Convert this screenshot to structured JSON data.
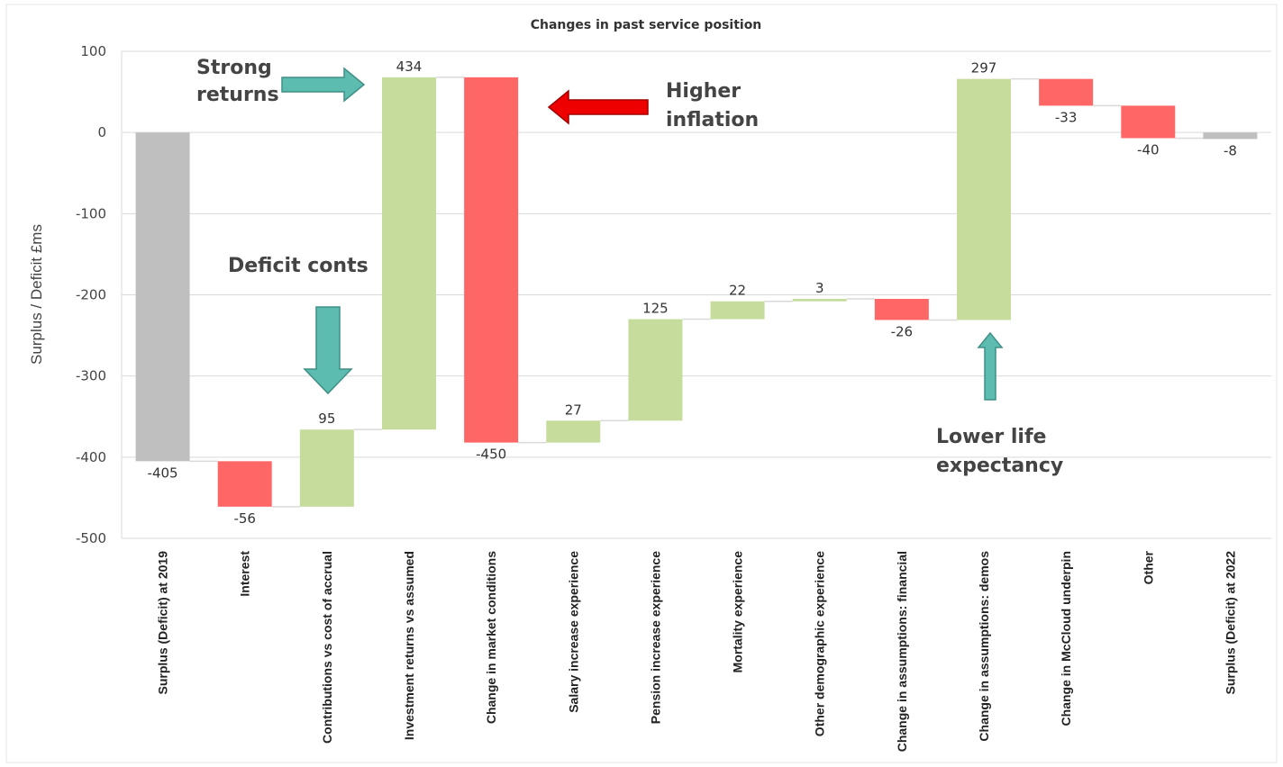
{
  "chart_data": {
    "type": "bar",
    "subtype": "waterfall",
    "title": "Changes in past service position",
    "ylabel": "Surplus / Deficit £ms",
    "xlabel": "",
    "ylim": [
      -500,
      100
    ],
    "yticks": [
      100,
      0,
      -100,
      -200,
      -300,
      -400,
      -500
    ],
    "grid": true,
    "categories": [
      "Surplus (Deficit) at 2019",
      "Interest",
      "Contributions vs cost of accrual",
      "Investment returns vs assumed",
      "Change in market conditions",
      "Salary increase experience",
      "Pension increase experience",
      "Mortality experience",
      "Other demographic experience",
      "Change in assumptions: financial",
      "Change in assumptions: demos",
      "Change in McCloud underpin",
      "Other",
      "Surplus (Deficit) at 2022"
    ],
    "values": [
      -405,
      -56,
      95,
      434,
      -450,
      27,
      125,
      22,
      3,
      -26,
      297,
      -33,
      -40,
      -8
    ],
    "value_labels": [
      "-405",
      "-56",
      "95",
      "434",
      "-450",
      "27",
      "125",
      "22",
      "3",
      "-26",
      "297",
      "-33",
      "-40",
      "-8"
    ],
    "kinds": [
      "total",
      "delta",
      "delta",
      "delta",
      "delta",
      "delta",
      "delta",
      "delta",
      "delta",
      "delta",
      "delta",
      "delta",
      "delta",
      "total"
    ],
    "colors": {
      "total": "#bfbfbf",
      "increase": "#c5dc9c",
      "decrease": "#ff6666",
      "connector": "#d9d9d9",
      "grid": "#d9d9d9",
      "arrow_teal": "#5cbcb0",
      "arrow_red": "#ee0000"
    },
    "annotations": [
      {
        "name": "strong-returns",
        "lines": [
          "Strong",
          "returns"
        ]
      },
      {
        "name": "higher-inflation",
        "lines": [
          "Higher",
          "inflation"
        ]
      },
      {
        "name": "deficit-conts",
        "lines": [
          "Deficit conts"
        ]
      },
      {
        "name": "lower-life-expectancy",
        "lines": [
          "Lower life",
          "expectancy"
        ]
      }
    ]
  }
}
